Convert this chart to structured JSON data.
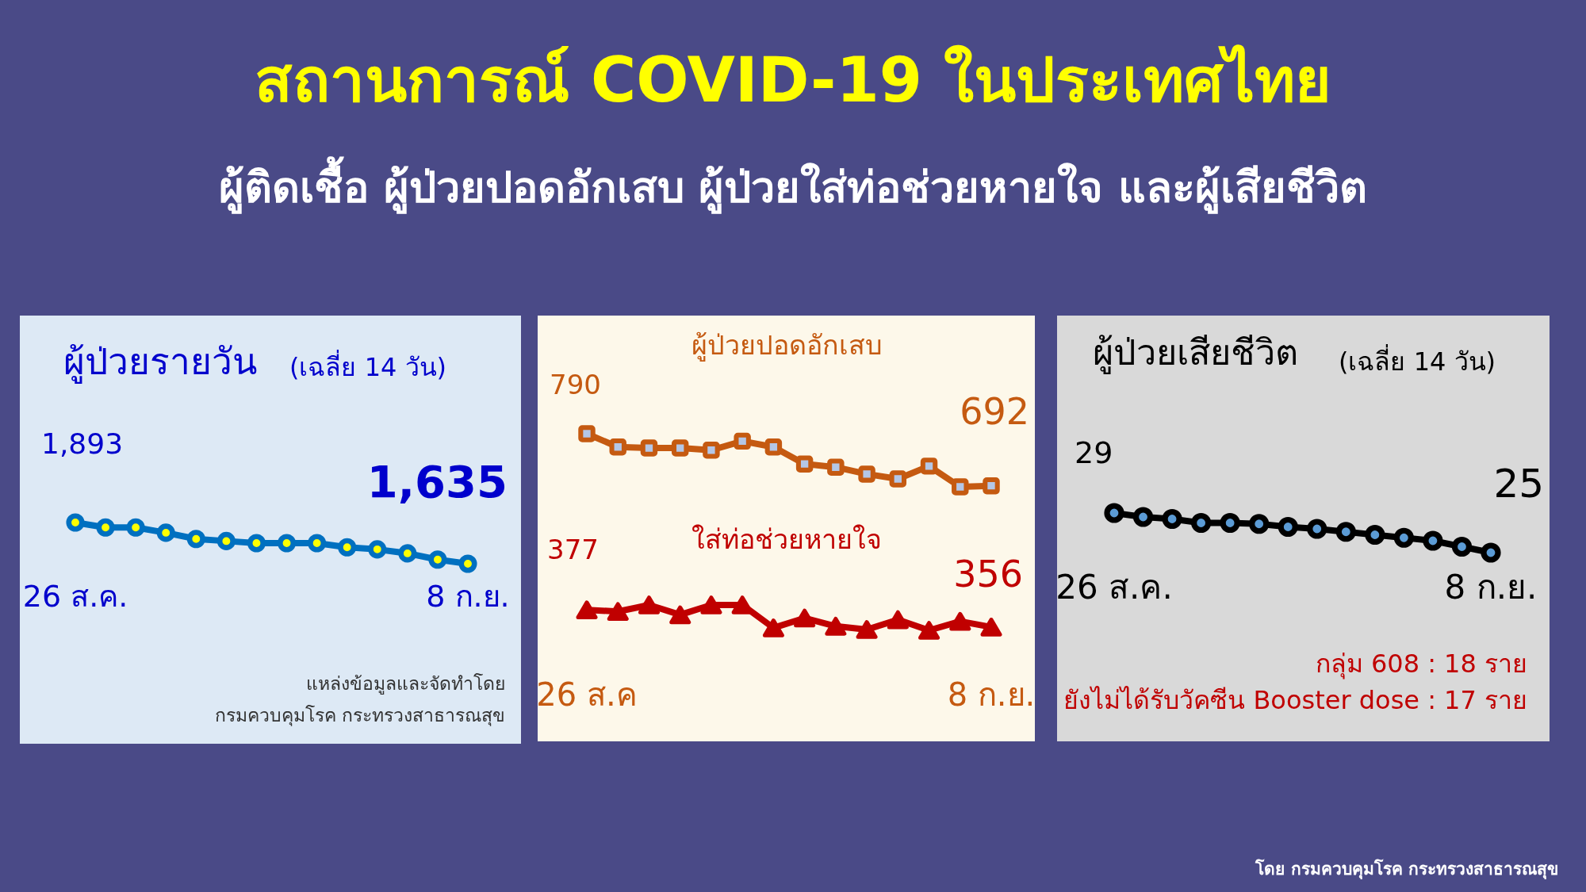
{
  "chart_data": [
    {
      "type": "other",
      "title": "สถานการณ์ COVID-19 ในประเทศไทย",
      "subtitle": "ผู้ติดเชื้อ ผู้ป่วยปอดอักเสบ ผู้ป่วยใส่ท่อช่วยหายใจ และผู้เสียชีวิต",
      "annotations": [
        "โดย กรมควบคุมโรค กระทรวงสาธารณสุข"
      ]
    },
    {
      "type": "line",
      "title": "ผู้ป่วยรายวัน",
      "subtitle": "(เฉลี่ย 14 วัน)",
      "marker": "circle",
      "categories": [
        "26 ส.ค.",
        null,
        null,
        null,
        null,
        null,
        null,
        null,
        null,
        null,
        null,
        null,
        null,
        "8 ก.ย."
      ],
      "series": [
        {
          "color": "#0070c0",
          "values": [
            1893,
            1862,
            1862,
            1829,
            1790,
            1777,
            1764,
            1764,
            1764,
            1738,
            1725,
            1700,
            1661,
            1635
          ],
          "value_labels": [
            "1,893",
            null,
            null,
            null,
            null,
            null,
            null,
            null,
            null,
            null,
            null,
            null,
            null,
            "1,635"
          ]
        }
      ],
      "annotations": [
        "แหล่งข้อมูลและจัดทำโดย",
        "กรมควบคุมโรค  กระทรวงสาธารณสุข"
      ]
    },
    {
      "type": "line",
      "title": "ผู้ป่วยปอดอักเสบ",
      "marker": "square",
      "categories": [
        null,
        null,
        null,
        null,
        null,
        null,
        null,
        null,
        null,
        null,
        null,
        null,
        null,
        null
      ],
      "series": [
        {
          "color": "#c55a11",
          "values": [
            790,
            765,
            763,
            763,
            759,
            776,
            765,
            733,
            727,
            714,
            705,
            729,
            690,
            692
          ],
          "value_labels": [
            "790",
            null,
            null,
            null,
            null,
            null,
            null,
            null,
            null,
            null,
            null,
            null,
            null,
            "692"
          ]
        }
      ]
    },
    {
      "type": "line",
      "title": "ใส่ท่อช่วยหายใจ",
      "marker": "triangle",
      "categories": [
        "26 ส.ค",
        null,
        null,
        null,
        null,
        null,
        null,
        null,
        null,
        null,
        null,
        null,
        null,
        "8 ก.ย."
      ],
      "series": [
        {
          "color": "#c00000",
          "values": [
            377,
            375,
            383,
            371,
            383,
            383,
            355,
            367,
            357,
            353,
            365,
            352,
            363,
            356
          ],
          "value_labels": [
            "377",
            null,
            null,
            null,
            null,
            null,
            null,
            null,
            null,
            null,
            null,
            null,
            null,
            "356"
          ]
        }
      ]
    },
    {
      "type": "line",
      "title": "ผู้ป่วยเสียชีวิต",
      "subtitle": "(เฉลี่ย 14 วัน)",
      "marker": "circle",
      "categories": [
        "26 ส.ค.",
        null,
        null,
        null,
        null,
        null,
        null,
        null,
        null,
        null,
        null,
        null,
        null,
        "8 ก.ย."
      ],
      "series": [
        {
          "color": "#000000",
          "values": [
            29,
            28.6,
            28.4,
            28.0,
            28.0,
            27.9,
            27.6,
            27.4,
            27.1,
            26.8,
            26.5,
            26.2,
            25.6,
            25
          ],
          "value_labels": [
            "29",
            null,
            null,
            null,
            null,
            null,
            null,
            null,
            null,
            null,
            null,
            null,
            null,
            "25"
          ]
        }
      ],
      "annotations": [
        "กลุ่ม 608 : 18 ราย",
        "ยังไม่ได้รับวัคซีน Booster dose : 17 ราย"
      ]
    }
  ]
}
